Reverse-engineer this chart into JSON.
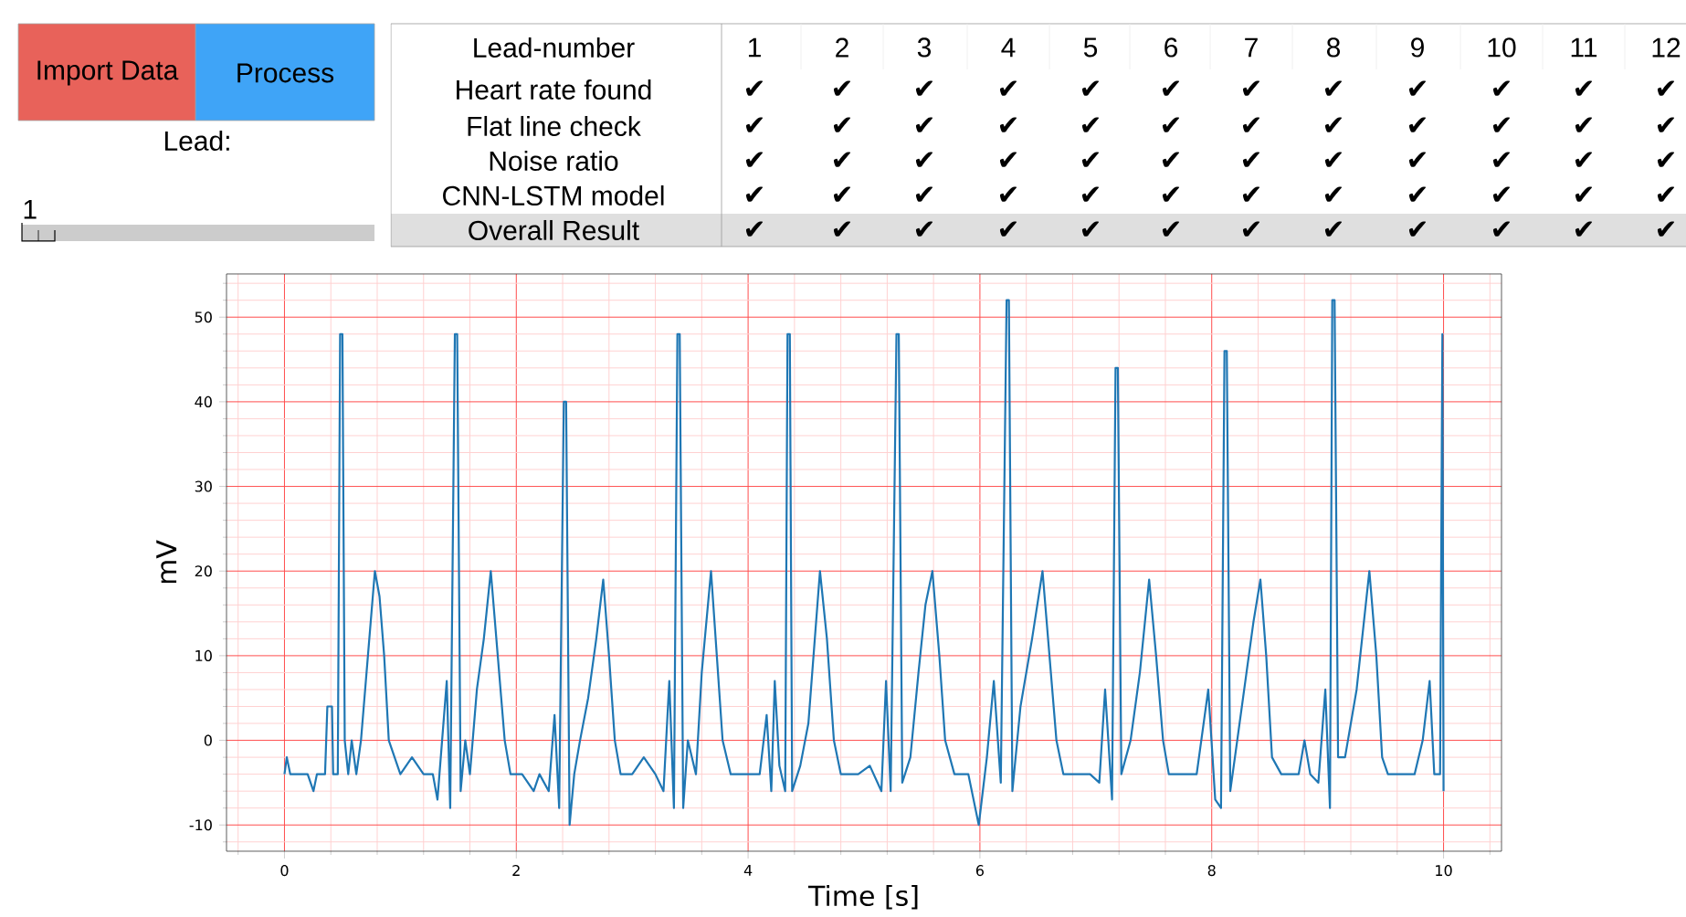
{
  "chart_data": [
    {
      "type": "heatmap",
      "xlabel": "Lead-number",
      "categories": [
        "1",
        "2",
        "3",
        "4",
        "5",
        "6",
        "7",
        "8",
        "9",
        "10",
        "11",
        "12"
      ],
      "y_categories": [
        "Heart rate found",
        "Flat line check",
        "Noise ratio",
        "CNN-LSTM model",
        "Overall Result"
      ],
      "cells": [
        [
          null,
          null,
          null,
          null,
          null,
          null,
          null,
          null,
          null,
          null,
          null,
          null
        ],
        [
          null,
          null,
          null,
          null,
          null,
          null,
          null,
          null,
          null,
          null,
          null,
          null
        ],
        [
          null,
          null,
          null,
          null,
          null,
          null,
          null,
          null,
          null,
          null,
          null,
          null
        ],
        [
          null,
          null,
          null,
          null,
          null,
          null,
          null,
          null,
          null,
          null,
          null,
          null
        ],
        [
          null,
          null,
          null,
          null,
          null,
          null,
          null,
          null,
          null,
          null,
          null,
          null
        ]
      ],
      "cell_labels": [
        [
          "✔",
          "✔",
          "✔",
          "✔",
          "✔",
          "✔",
          "✔",
          "✔",
          "✔",
          "✔",
          "✔",
          "✔"
        ],
        [
          "✔",
          "✔",
          "✔",
          "✔",
          "✔",
          "✔",
          "✔",
          "✔",
          "✔",
          "✔",
          "✔",
          "✔"
        ],
        [
          "✔",
          "✔",
          "✔",
          "✔",
          "✔",
          "✔",
          "✔",
          "✔",
          "✔",
          "✔",
          "✔",
          "✔"
        ],
        [
          "✔",
          "✔",
          "✔",
          "✔",
          "✔",
          "✔",
          "✔",
          "✔",
          "✔",
          "✔",
          "✔",
          "✔"
        ],
        [
          "✔",
          "✔",
          "✔",
          "✔",
          "✔",
          "✔",
          "✔",
          "✔",
          "✔",
          "✔",
          "✔",
          "✔"
        ]
      ],
      "annotations": [
        "Import Data",
        "Process",
        "Lead:",
        "1"
      ]
    },
    {
      "type": "line",
      "xlabel": "Time [s]",
      "ylabel": "mV",
      "color": "#1f77b4",
      "grid": true,
      "xlim": [
        -0.5,
        10.5
      ],
      "ylim": [
        -13.1,
        55.1
      ],
      "xticks": [
        {
          "value": -0.4,
          "label": null
        },
        0,
        {
          "value": 0.4,
          "label": null
        },
        {
          "value": 0.8,
          "label": null
        },
        {
          "value": 1.2,
          "label": null
        },
        {
          "value": 1.6,
          "label": null
        },
        2,
        {
          "value": 2.4,
          "label": null
        },
        {
          "value": 2.8,
          "label": null
        },
        {
          "value": 3.2,
          "label": null
        },
        {
          "value": 3.6,
          "label": null
        },
        4,
        {
          "value": 4.4,
          "label": null
        },
        {
          "value": 4.8,
          "label": null
        },
        {
          "value": 5.2,
          "label": null
        },
        {
          "value": 5.6,
          "label": null
        },
        6,
        {
          "value": 6.4,
          "label": null
        },
        {
          "value": 6.8,
          "label": null
        },
        {
          "value": 7.2,
          "label": null
        },
        {
          "value": 7.6,
          "label": null
        },
        8,
        {
          "value": 8.4,
          "label": null
        },
        {
          "value": 8.8,
          "label": null
        },
        {
          "value": 9.2,
          "label": null
        },
        {
          "value": 9.6,
          "label": null
        },
        10,
        {
          "value": 10.4,
          "label": null
        }
      ],
      "yticks": [
        {
          "value": -12,
          "label": null
        },
        -10,
        {
          "value": -8,
          "label": null
        },
        {
          "value": -6,
          "label": null
        },
        {
          "value": -4,
          "label": null
        },
        {
          "value": -2,
          "label": null
        },
        0,
        {
          "value": 2,
          "label": null
        },
        {
          "value": 4,
          "label": null
        },
        {
          "value": 6,
          "label": null
        },
        {
          "value": 8,
          "label": null
        },
        10,
        {
          "value": 12,
          "label": null
        },
        {
          "value": 14,
          "label": null
        },
        {
          "value": 16,
          "label": null
        },
        {
          "value": 18,
          "label": null
        },
        20,
        {
          "value": 22,
          "label": null
        },
        {
          "value": 24,
          "label": null
        },
        {
          "value": 26,
          "label": null
        },
        {
          "value": 28,
          "label": null
        },
        30,
        {
          "value": 32,
          "label": null
        },
        {
          "value": 34,
          "label": null
        },
        {
          "value": 36,
          "label": null
        },
        {
          "value": 38,
          "label": null
        },
        40,
        {
          "value": 42,
          "label": null
        },
        {
          "value": 44,
          "label": null
        },
        {
          "value": 46,
          "label": null
        },
        {
          "value": 48,
          "label": null
        },
        50,
        {
          "value": 52,
          "label": null
        },
        {
          "value": 54,
          "label": null
        }
      ],
      "x": [
        0,
        0.02,
        0.05,
        0.2,
        0.25,
        0.28,
        0.35,
        0.37,
        0.41,
        0.42,
        0.46,
        0.48,
        0.5,
        0.52,
        0.55,
        0.58,
        0.62,
        0.66,
        0.72,
        0.78,
        0.82,
        0.86,
        0.9,
        0.95,
        1.0,
        1.1,
        1.2,
        1.28,
        1.32,
        1.36,
        1.4,
        1.43,
        1.47,
        1.49,
        1.52,
        1.56,
        1.6,
        1.66,
        1.72,
        1.78,
        1.84,
        1.9,
        1.95,
        2.05,
        2.15,
        2.2,
        2.28,
        2.33,
        2.37,
        2.41,
        2.43,
        2.46,
        2.5,
        2.55,
        2.62,
        2.69,
        2.75,
        2.8,
        2.85,
        2.9,
        3.0,
        3.1,
        3.2,
        3.27,
        3.32,
        3.36,
        3.39,
        3.41,
        3.44,
        3.48,
        3.55,
        3.6,
        3.68,
        3.73,
        3.78,
        3.85,
        4.0,
        4.1,
        4.16,
        4.2,
        4.23,
        4.27,
        4.32,
        4.34,
        4.36,
        4.38,
        4.45,
        4.52,
        4.62,
        4.68,
        4.74,
        4.8,
        4.95,
        5.05,
        5.15,
        5.19,
        5.23,
        5.28,
        5.3,
        5.33,
        5.4,
        5.47,
        5.53,
        5.59,
        5.65,
        5.7,
        5.78,
        5.9,
        5.99,
        6.06,
        6.12,
        6.18,
        6.23,
        6.25,
        6.28,
        6.35,
        6.45,
        6.54,
        6.6,
        6.66,
        6.72,
        6.85,
        6.95,
        7.03,
        7.08,
        7.14,
        7.17,
        7.19,
        7.22,
        7.3,
        7.38,
        7.46,
        7.52,
        7.58,
        7.63,
        7.75,
        7.87,
        7.97,
        8.03,
        8.08,
        8.11,
        8.13,
        8.16,
        8.22,
        8.3,
        8.36,
        8.42,
        8.47,
        8.52,
        8.6,
        8.75,
        8.8,
        8.85,
        8.92,
        8.98,
        9.02,
        9.04,
        9.06,
        9.09,
        9.15,
        9.25,
        9.36,
        9.42,
        9.47,
        9.52,
        9.62,
        9.75,
        9.82,
        9.88,
        9.92,
        9.97,
        9.99,
        10.0
      ],
      "values": [
        -4,
        -2,
        -4,
        -4,
        -6,
        -4,
        -4,
        4,
        4,
        -4,
        -4,
        48,
        48,
        0,
        -4,
        0,
        -4,
        0,
        10,
        20,
        17,
        10,
        0,
        -2,
        -4,
        -2,
        -4,
        -4,
        -7,
        0,
        7,
        -8,
        48,
        48,
        -6,
        0,
        -4,
        6,
        12,
        20,
        10,
        0,
        -4,
        -4,
        -6,
        -4,
        -6,
        3,
        -8,
        40,
        40,
        -10,
        -4,
        0,
        5,
        12,
        19,
        10,
        0,
        -4,
        -4,
        -2,
        -4,
        -6,
        7,
        -8,
        48,
        48,
        -8,
        0,
        -4,
        8,
        20,
        10,
        0,
        -4,
        -4,
        -4,
        3,
        -6,
        7,
        -3,
        -6,
        48,
        48,
        -6,
        -3,
        2,
        20,
        12,
        0,
        -4,
        -4,
        -3,
        -6,
        7,
        -6,
        48,
        48,
        -5,
        -2,
        8,
        16,
        20,
        10,
        0,
        -4,
        -4,
        -10,
        -2,
        7,
        -5,
        52,
        52,
        -6,
        4,
        12,
        20,
        10,
        0,
        -4,
        -4,
        -4,
        -5,
        6,
        -7,
        44,
        44,
        -4,
        0,
        8,
        19,
        10,
        0,
        -4,
        -4,
        -4,
        6,
        -7,
        -8,
        46,
        46,
        -6,
        0,
        8,
        14,
        19,
        10,
        -2,
        -4,
        -4,
        0,
        -4,
        -5,
        6,
        -8,
        52,
        52,
        -2,
        -2,
        6,
        20,
        10,
        -2,
        -4,
        -4,
        -4,
        0,
        7,
        -4,
        -4,
        48,
        -6
      ]
    }
  ]
}
